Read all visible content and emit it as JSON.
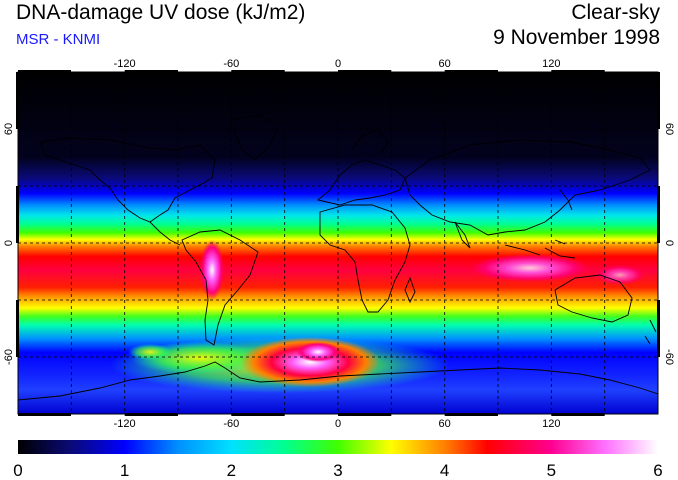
{
  "header": {
    "title": "DNA-damage UV dose (kJ/m2)",
    "subtitle": "MSR - KNMI",
    "mode": "Clear-sky",
    "date": "9 November 1998"
  },
  "map": {
    "projection": "equirectangular",
    "lon_range": [
      -180,
      180
    ],
    "lat_range": [
      -90,
      90
    ],
    "lon_ticks": [
      -120,
      -60,
      0,
      60,
      120
    ],
    "lat_ticks": [
      60,
      0,
      -60
    ],
    "lon_tick_labels": [
      "-120",
      "-60",
      "0",
      "60",
      "120"
    ],
    "lat_tick_labels": [
      "60",
      "0",
      "-60"
    ],
    "grid": "dashed every 30 degrees",
    "coastlines": true
  },
  "colorbar": {
    "min": 0,
    "max": 6,
    "tick_labels": [
      "0",
      "1",
      "2",
      "3",
      "4",
      "5",
      "6"
    ],
    "stops": [
      {
        "v": 0,
        "color": "#000000"
      },
      {
        "v": 0.5,
        "color": "#0a0a78"
      },
      {
        "v": 1,
        "color": "#0000ff"
      },
      {
        "v": 1.5,
        "color": "#0090ff"
      },
      {
        "v": 2,
        "color": "#00e0ff"
      },
      {
        "v": 2.5,
        "color": "#00ff90"
      },
      {
        "v": 3,
        "color": "#40ff00"
      },
      {
        "v": 3.5,
        "color": "#ffff00"
      },
      {
        "v": 4,
        "color": "#ff8000"
      },
      {
        "v": 4.4,
        "color": "#ff0000"
      },
      {
        "v": 5,
        "color": "#ff0090"
      },
      {
        "v": 5.5,
        "color": "#ff70ff"
      },
      {
        "v": 6,
        "color": "#ffffff"
      }
    ]
  }
}
